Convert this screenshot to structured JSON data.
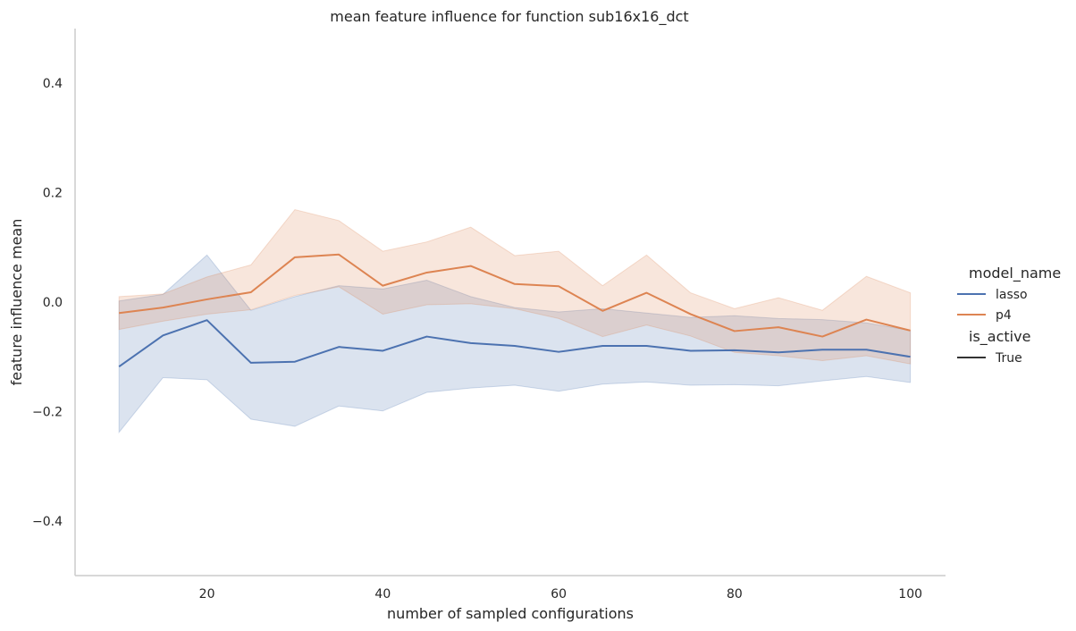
{
  "chart_data": {
    "type": "line",
    "title": "mean feature influence for function sub16x16_dct",
    "xlabel": "number of sampled configurations",
    "ylabel": "feature influence mean",
    "xlim": [
      5,
      104
    ],
    "ylim": [
      -0.5,
      0.5
    ],
    "xticks": [
      20,
      40,
      60,
      80,
      100
    ],
    "xtick_labels": [
      "20",
      "40",
      "60",
      "80",
      "100"
    ],
    "yticks": [
      -0.4,
      -0.2,
      0.0,
      0.2,
      0.4
    ],
    "ytick_labels": [
      "−0.4",
      "−0.2",
      "0.0",
      "0.2",
      "0.4"
    ],
    "grid": false,
    "legend": {
      "placement": "right",
      "hue_title": "model_name",
      "style_title": "is_active",
      "style_entry": "True"
    },
    "x": [
      10,
      15,
      20,
      25,
      30,
      35,
      40,
      45,
      50,
      55,
      60,
      65,
      70,
      75,
      80,
      85,
      90,
      95,
      100
    ],
    "series": [
      {
        "name": "lasso",
        "color": "#4c72b0",
        "values": [
          -0.118,
          -0.061,
          -0.033,
          -0.111,
          -0.109,
          -0.082,
          -0.089,
          -0.063,
          -0.075,
          -0.08,
          -0.091,
          -0.08,
          -0.08,
          -0.089,
          -0.088,
          -0.092,
          -0.087,
          -0.087,
          -0.1
        ],
        "lower": [
          -0.238,
          -0.138,
          -0.142,
          -0.214,
          -0.227,
          -0.19,
          -0.199,
          -0.165,
          -0.157,
          -0.152,
          -0.163,
          -0.15,
          -0.146,
          -0.152,
          -0.151,
          -0.153,
          -0.144,
          -0.136,
          -0.147
        ],
        "upper": [
          0.002,
          0.014,
          0.086,
          -0.015,
          0.01,
          0.03,
          0.024,
          0.04,
          0.01,
          -0.01,
          -0.018,
          -0.012,
          -0.02,
          -0.028,
          -0.025,
          -0.03,
          -0.032,
          -0.038,
          -0.052
        ]
      },
      {
        "name": "p4",
        "color": "#dd8452",
        "values": [
          -0.02,
          -0.01,
          0.005,
          0.018,
          0.082,
          0.087,
          0.03,
          0.054,
          0.066,
          0.033,
          0.029,
          -0.016,
          0.017,
          -0.022,
          -0.053,
          -0.046,
          -0.063,
          -0.032,
          -0.052
        ],
        "lower": [
          -0.05,
          -0.035,
          -0.022,
          -0.014,
          0.012,
          0.028,
          -0.022,
          -0.005,
          -0.003,
          -0.012,
          -0.03,
          -0.063,
          -0.042,
          -0.062,
          -0.092,
          -0.098,
          -0.107,
          -0.098,
          -0.113
        ],
        "upper": [
          0.01,
          0.015,
          0.046,
          0.068,
          0.169,
          0.149,
          0.093,
          0.11,
          0.137,
          0.085,
          0.093,
          0.03,
          0.086,
          0.017,
          -0.012,
          0.008,
          -0.015,
          0.047,
          0.017
        ]
      }
    ]
  }
}
